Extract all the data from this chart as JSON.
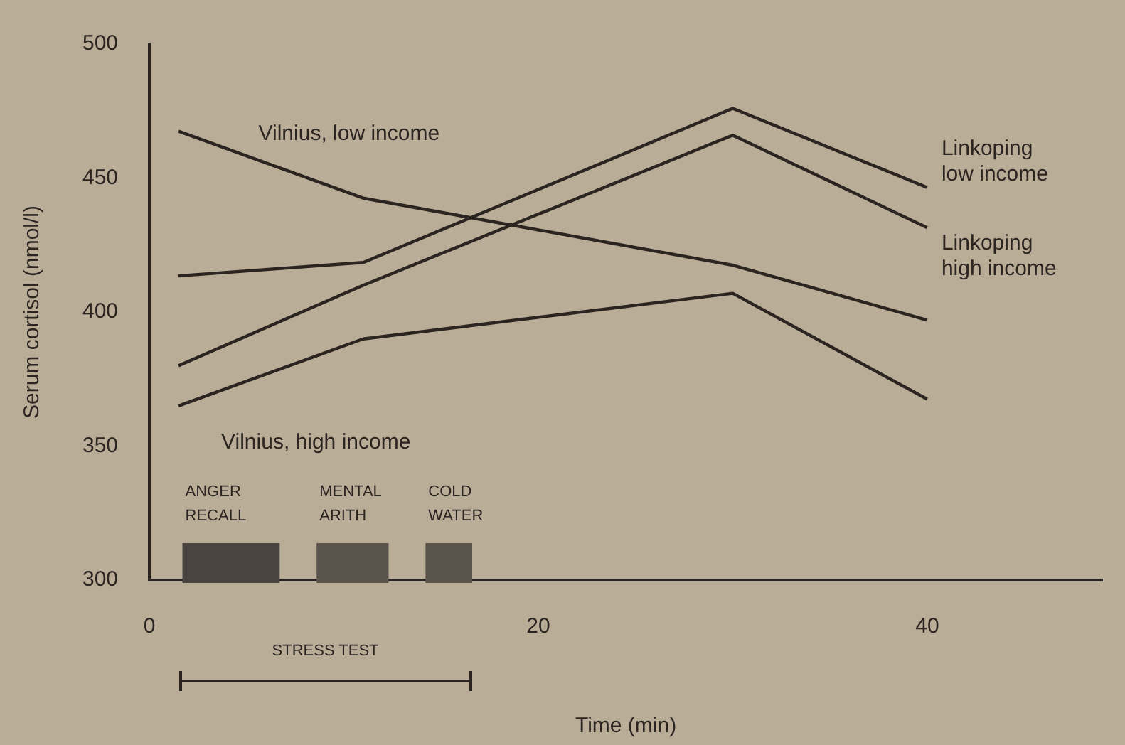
{
  "chart_data": {
    "type": "line",
    "xlabel": "Time (min)",
    "ylabel": "Serum cortisol (nmol/l)",
    "x": [
      1.5,
      11,
      30,
      40
    ],
    "series": [
      {
        "name": "Vilnius, low income",
        "color": "#2b2420",
        "values": [
          467.5,
          442.5,
          417.5,
          397
        ]
      },
      {
        "name": "Linkoping low income",
        "color": "#2b2420",
        "values": [
          413.5,
          418.5,
          476,
          446.5
        ]
      },
      {
        "name": "Linkoping high income",
        "color": "#2b2420",
        "values": [
          380,
          410,
          466,
          431.5
        ]
      },
      {
        "name": "Vilnius, high income",
        "color": "#2b2420",
        "values": [
          365,
          390,
          407,
          367.5
        ]
      }
    ],
    "xlim": [
      0,
      49
    ],
    "ylim": [
      300,
      500
    ],
    "xticks": [
      0,
      20,
      40
    ],
    "yticks": [
      300,
      350,
      400,
      450,
      500
    ],
    "grid": false,
    "legend": false,
    "marker": "none",
    "line_style": "solid",
    "bands": [
      {
        "axis": "x",
        "from": 1.7,
        "to": 6.7,
        "label": "ANGER RECALL",
        "color": "#4a4440"
      },
      {
        "axis": "x",
        "from": 8.6,
        "to": 12.3,
        "label": "MENTAL ARITH",
        "color": "#5a544c"
      },
      {
        "axis": "x",
        "from": 14.2,
        "to": 16.6,
        "label": "COLD WATER",
        "color": "#5a544c"
      }
    ],
    "annotations": [
      "STRESS TEST"
    ]
  }
}
